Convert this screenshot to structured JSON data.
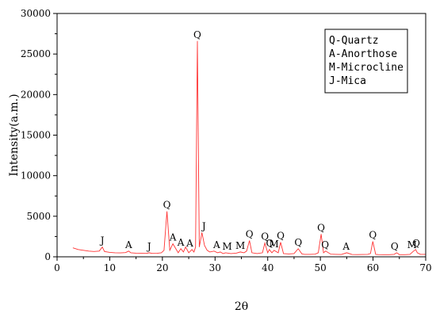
{
  "chart_data": {
    "type": "line",
    "xlabel": "2θ",
    "ylabel": "Intensity(a.m.)",
    "xlim": [
      0,
      70
    ],
    "ylim": [
      0,
      30000
    ],
    "x_ticks": [
      0,
      10,
      20,
      30,
      40,
      50,
      60,
      70
    ],
    "y_ticks": [
      0,
      5000,
      10000,
      15000,
      20000,
      25000,
      30000
    ],
    "line_color": "#ff3333",
    "series": [
      {
        "x": [
          3,
          4,
          5,
          6,
          7,
          8,
          8.6,
          9,
          10,
          11,
          12,
          13,
          13.6,
          14,
          15,
          16,
          17,
          17.5,
          18,
          19,
          19.8,
          20.3,
          20.86,
          21.4,
          22,
          23,
          23.5,
          24,
          24.4,
          25,
          25.6,
          26,
          26.3,
          26.64,
          27,
          27.3,
          27.5,
          28,
          28.5,
          29,
          29.8,
          30.5,
          31,
          31.5,
          32,
          33,
          34,
          34.8,
          35.5,
          36,
          36.54,
          37,
          38,
          39,
          39.46,
          40,
          40.3,
          40.8,
          41.2,
          42,
          42.45,
          43,
          44,
          45,
          45.8,
          46.5,
          47,
          48,
          49,
          49.6,
          50.14,
          50.6,
          51,
          52,
          53,
          54,
          55,
          56,
          57,
          58,
          59,
          59.5,
          59.96,
          60.5,
          61,
          62,
          63,
          64,
          64.5,
          65,
          66,
          67,
          67.7,
          68.1,
          68.4,
          69,
          70
        ],
        "y": [
          1100,
          900,
          800,
          700,
          650,
          700,
          1200,
          650,
          550,
          500,
          480,
          520,
          700,
          500,
          450,
          430,
          420,
          500,
          420,
          430,
          500,
          800,
          5600,
          800,
          1600,
          500,
          1000,
          600,
          1200,
          500,
          900,
          600,
          1200,
          26600,
          1200,
          2200,
          3000,
          1400,
          800,
          600,
          700,
          500,
          600,
          400,
          500,
          400,
          450,
          600,
          500,
          700,
          2000,
          500,
          400,
          500,
          1700,
          500,
          900,
          500,
          800,
          500,
          1800,
          400,
          350,
          400,
          1000,
          350,
          300,
          300,
          320,
          500,
          2800,
          500,
          700,
          320,
          300,
          280,
          500,
          280,
          270,
          280,
          300,
          400,
          1900,
          300,
          270,
          260,
          260,
          300,
          500,
          260,
          260,
          300,
          700,
          900,
          500,
          300,
          300
        ]
      }
    ],
    "peak_labels": [
      {
        "text": "J",
        "x": 8.6,
        "y": 1200
      },
      {
        "text": "A",
        "x": 13.6,
        "y": 700
      },
      {
        "text": "J",
        "x": 17.5,
        "y": 500
      },
      {
        "text": "Q",
        "x": 20.86,
        "y": 5600
      },
      {
        "text": "A",
        "x": 22,
        "y": 1600
      },
      {
        "text": "A",
        "x": 23.5,
        "y": 1000
      },
      {
        "text": "A",
        "x": 25.2,
        "y": 900
      },
      {
        "text": "Q",
        "x": 26.64,
        "y": 26600
      },
      {
        "text": "J",
        "x": 27.9,
        "y": 3000
      },
      {
        "text": "A",
        "x": 30.3,
        "y": 700
      },
      {
        "text": "M",
        "x": 32.3,
        "y": 500
      },
      {
        "text": "M",
        "x": 34.8,
        "y": 600
      },
      {
        "text": "Q",
        "x": 36.54,
        "y": 2000
      },
      {
        "text": "Q",
        "x": 39.46,
        "y": 1700
      },
      {
        "text": "Q",
        "x": 40.4,
        "y": 900
      },
      {
        "text": "M",
        "x": 41.2,
        "y": 800
      },
      {
        "text": "Q",
        "x": 42.45,
        "y": 1800
      },
      {
        "text": "Q",
        "x": 45.8,
        "y": 1000
      },
      {
        "text": "Q",
        "x": 50.14,
        "y": 2800
      },
      {
        "text": "Q",
        "x": 50.9,
        "y": 700
      },
      {
        "text": "A",
        "x": 54.9,
        "y": 500
      },
      {
        "text": "Q",
        "x": 59.96,
        "y": 1900
      },
      {
        "text": "Q",
        "x": 64.1,
        "y": 500
      },
      {
        "text": "M",
        "x": 67.4,
        "y": 700
      },
      {
        "text": "Q",
        "x": 68.2,
        "y": 900
      }
    ],
    "legend": {
      "position": "top-right",
      "entries": [
        "Q-Quartz",
        "A-Anorthose",
        "M-Microcline",
        "J-Mica"
      ]
    }
  }
}
